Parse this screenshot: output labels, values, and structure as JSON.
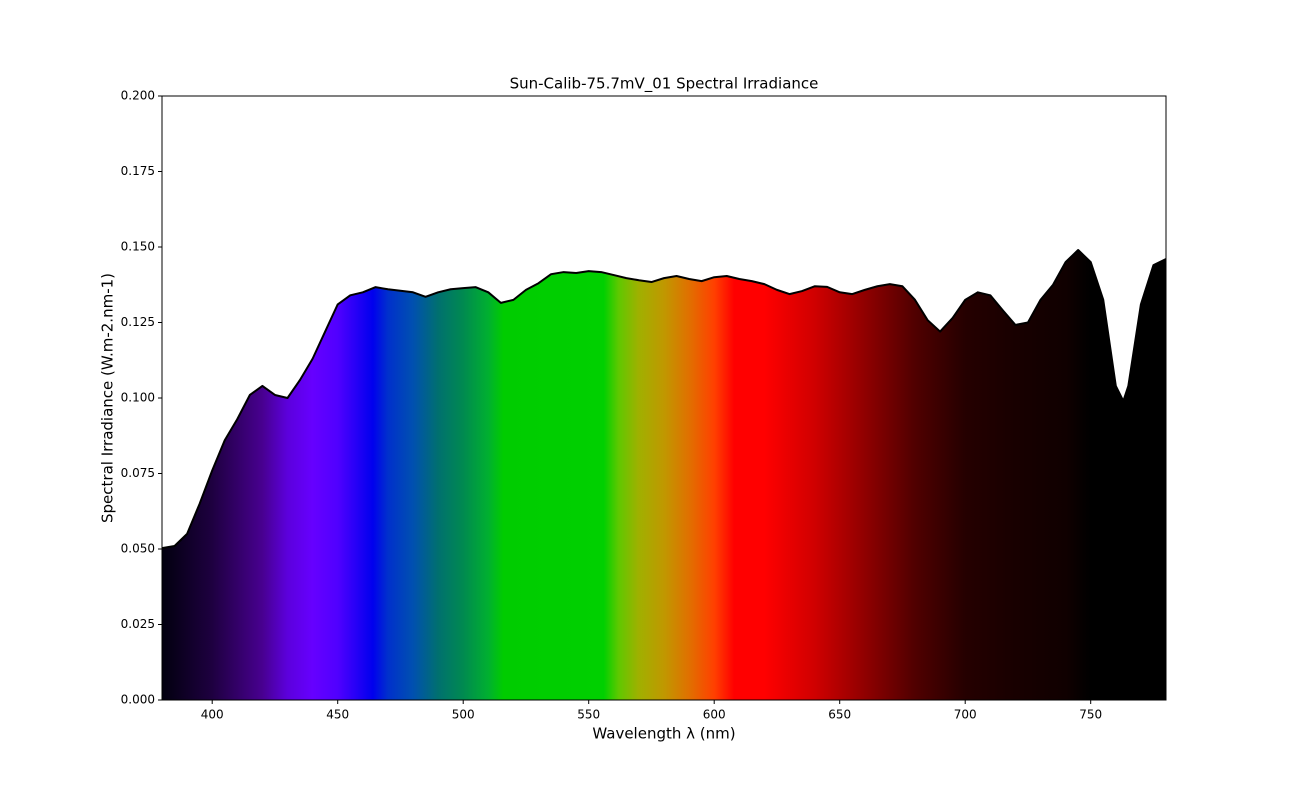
{
  "chart_data": {
    "type": "area",
    "title": "Sun-Calib-75.7mV_01 Spectral Irradiance",
    "x_label": "Wavelength λ (nm)",
    "y_label": "Spectral Irradiance  (W.m-2.nm-1)",
    "x": [
      380,
      385,
      390,
      395,
      400,
      405,
      410,
      415,
      420,
      425,
      430,
      435,
      440,
      445,
      450,
      455,
      460,
      465,
      470,
      475,
      480,
      485,
      490,
      495,
      500,
      505,
      510,
      515,
      520,
      525,
      530,
      535,
      540,
      545,
      550,
      555,
      560,
      565,
      570,
      575,
      580,
      585,
      590,
      595,
      600,
      605,
      610,
      615,
      620,
      625,
      630,
      635,
      640,
      645,
      650,
      655,
      660,
      665,
      670,
      675,
      680,
      685,
      690,
      695,
      700,
      705,
      710,
      715,
      720,
      725,
      730,
      735,
      740,
      745,
      750,
      755,
      760,
      763,
      765,
      770,
      775,
      780
    ],
    "series": [
      {
        "name": "Spectral Irradiance",
        "color": "#000000",
        "values": [
          0.0503,
          0.051,
          0.055,
          0.065,
          0.076,
          0.086,
          0.093,
          0.101,
          0.104,
          0.101,
          0.1,
          0.106,
          0.113,
          0.122,
          0.131,
          0.134,
          0.135,
          0.1367,
          0.136,
          0.1355,
          0.135,
          0.1335,
          0.135,
          0.136,
          0.1364,
          0.1367,
          0.135,
          0.1315,
          0.1325,
          0.1358,
          0.138,
          0.141,
          0.1417,
          0.1414,
          0.142,
          0.1417,
          0.1407,
          0.1397,
          0.139,
          0.1384,
          0.1397,
          0.1404,
          0.1394,
          0.1387,
          0.14,
          0.1404,
          0.1394,
          0.1387,
          0.1377,
          0.1358,
          0.1344,
          0.1354,
          0.137,
          0.1368,
          0.135,
          0.1344,
          0.1358,
          0.137,
          0.1377,
          0.137,
          0.1325,
          0.1258,
          0.122,
          0.1265,
          0.1325,
          0.135,
          0.134,
          0.129,
          0.1242,
          0.125,
          0.1325,
          0.1375,
          0.145,
          0.149,
          0.145,
          0.1325,
          0.104,
          0.099,
          0.104,
          0.131,
          0.144,
          0.146
        ]
      }
    ],
    "xlim": [
      380,
      780
    ],
    "xticks": [
      400,
      450,
      500,
      550,
      600,
      650,
      700,
      750
    ],
    "ylim": [
      0,
      0.2
    ],
    "yticks": [
      {
        "value": 0,
        "label": "0.000"
      },
      {
        "value": 0.025,
        "label": "0.025"
      },
      {
        "value": 0.05,
        "label": "0.050"
      },
      {
        "value": 0.075,
        "label": "0.075"
      },
      {
        "value": 0.1,
        "label": "0.100"
      },
      0.125,
      {
        "value": 0.15,
        "label": "0.150"
      },
      0.175,
      {
        "value": 0.2,
        "label": "0.200"
      }
    ],
    "grid": false
  }
}
